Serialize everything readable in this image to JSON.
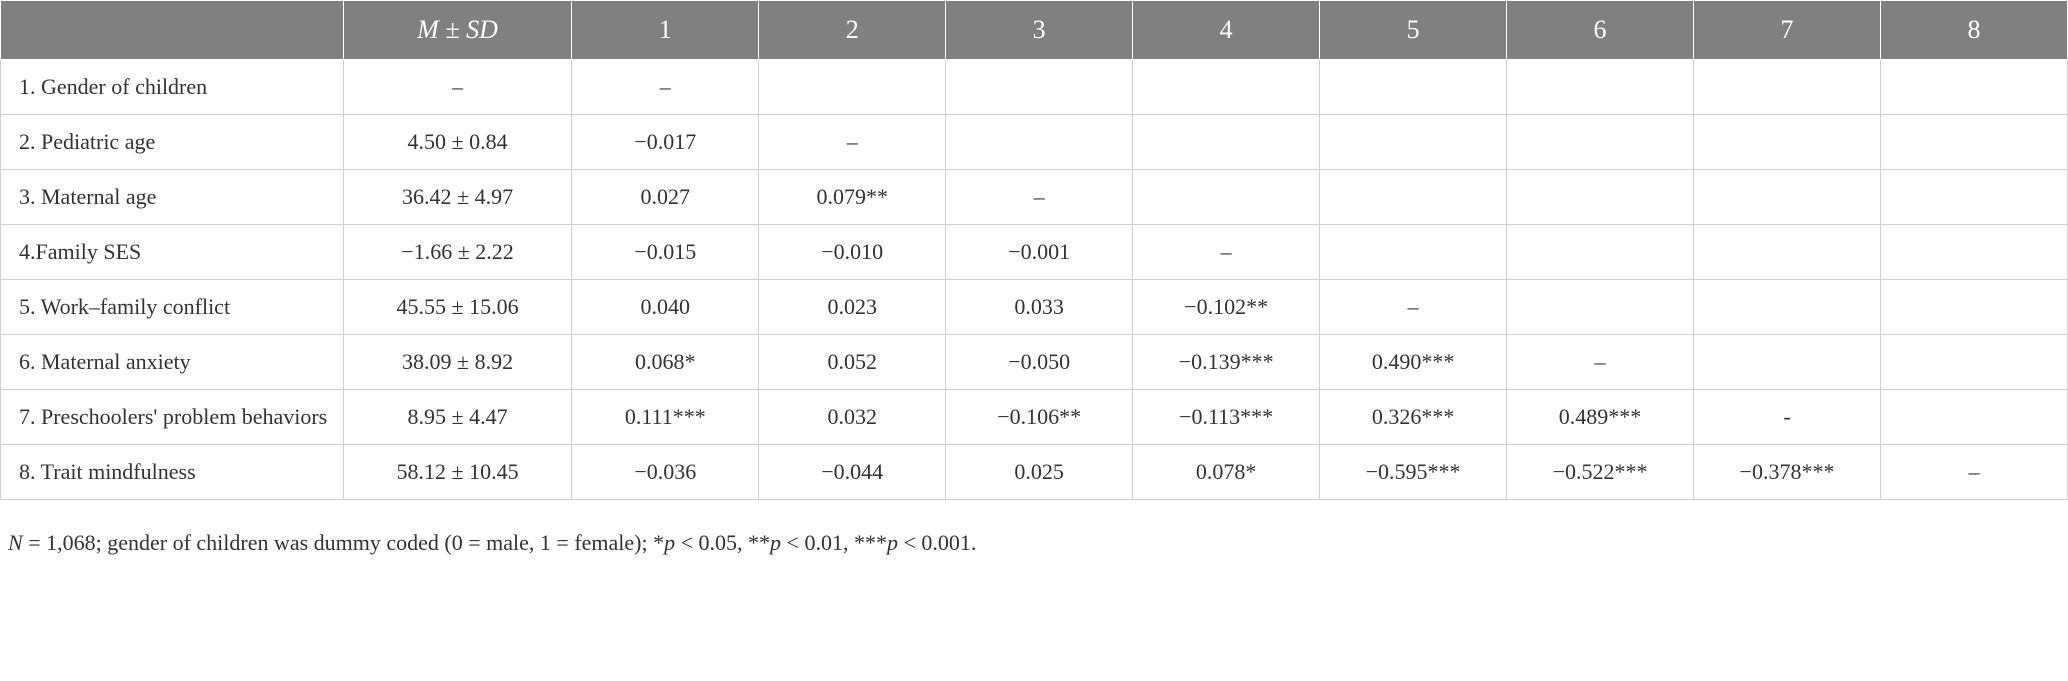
{
  "table": {
    "header": {
      "empty": "",
      "msd": "M ± SD",
      "cols": [
        "1",
        "2",
        "3",
        "4",
        "5",
        "6",
        "7",
        "8"
      ]
    },
    "rows": [
      {
        "label": "1. Gender of children",
        "msd": "–",
        "cells": [
          "–",
          "",
          "",
          "",
          "",
          "",
          "",
          ""
        ]
      },
      {
        "label": "2. Pediatric age",
        "msd": "4.50 ± 0.84",
        "cells": [
          "−0.017",
          "–",
          "",
          "",
          "",
          "",
          "",
          ""
        ]
      },
      {
        "label": "3. Maternal age",
        "msd": "36.42 ± 4.97",
        "cells": [
          "0.027",
          "0.079**",
          "–",
          "",
          "",
          "",
          "",
          ""
        ]
      },
      {
        "label": "4.Family SES",
        "msd": "−1.66 ± 2.22",
        "cells": [
          "−0.015",
          "−0.010",
          "−0.001",
          "–",
          "",
          "",
          "",
          ""
        ]
      },
      {
        "label": "5. Work–family conflict",
        "msd": "45.55 ± 15.06",
        "cells": [
          "0.040",
          "0.023",
          "0.033",
          "−0.102**",
          "–",
          "",
          "",
          ""
        ]
      },
      {
        "label": "6. Maternal anxiety",
        "msd": "38.09 ± 8.92",
        "cells": [
          "0.068*",
          "0.052",
          "−0.050",
          "−0.139***",
          "0.490***",
          "–",
          "",
          ""
        ]
      },
      {
        "label": "7. Preschoolers' problem behaviors",
        "msd": "8.95 ± 4.47",
        "cells": [
          "0.111***",
          "0.032",
          "−0.106**",
          "−0.113***",
          "0.326***",
          "0.489***",
          "-",
          ""
        ]
      },
      {
        "label": "8. Trait mindfulness",
        "msd": "58.12 ± 10.45",
        "cells": [
          "−0.036",
          "−0.044",
          "0.025",
          "0.078*",
          "−0.595***",
          "−0.522***",
          "−0.378***",
          "–"
        ]
      }
    ]
  },
  "footnote": {
    "n_label": "N",
    "n_text": " = 1,068; gender of children was dummy coded (0 = male, 1 = female); *",
    "p1_label": "p",
    "p1_text": " < 0.05, **",
    "p2_label": "p",
    "p2_text": " < 0.01, ***",
    "p3_label": "p",
    "p3_text": " < 0.001."
  },
  "style": {
    "header_bg": "#808080",
    "header_fg": "#ffffff",
    "cell_border": "#d0d0d0",
    "body_bg": "#ffffff",
    "text_color": "#333333",
    "header_fontsize": 26,
    "cell_fontsize": 22,
    "footnote_fontsize": 22
  }
}
